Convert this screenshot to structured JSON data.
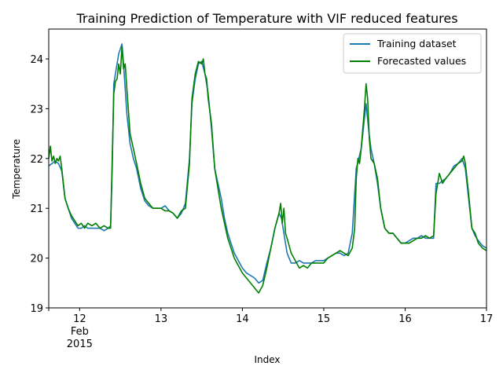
{
  "chart_data": {
    "type": "line",
    "title": "Training Prediction of Temperature with VIF reduced features",
    "xlabel": "Index",
    "ylabel": "Temperature",
    "xlim": [
      11.62,
      17.0
    ],
    "ylim": [
      19.0,
      24.6
    ],
    "x_ticks": [
      {
        "value": 12,
        "label": "12",
        "sub1": "Feb",
        "sub2": "2015"
      },
      {
        "value": 13,
        "label": "13"
      },
      {
        "value": 14,
        "label": "14"
      },
      {
        "value": 15,
        "label": "15"
      },
      {
        "value": 16,
        "label": "16"
      },
      {
        "value": 17,
        "label": "17"
      }
    ],
    "y_ticks": [
      19,
      20,
      21,
      22,
      23,
      24
    ],
    "legend_position": "top-right",
    "grid": false,
    "series": [
      {
        "name": "Training dataset",
        "color": "#1f77b4",
        "x": [
          11.62,
          11.66,
          11.7,
          11.74,
          11.78,
          11.82,
          11.86,
          11.9,
          11.94,
          11.98,
          12.02,
          12.06,
          12.1,
          12.15,
          12.2,
          12.25,
          12.3,
          12.35,
          12.38,
          12.4,
          12.42,
          12.45,
          12.48,
          12.5,
          12.52,
          12.54,
          12.56,
          12.58,
          12.62,
          12.66,
          12.7,
          12.75,
          12.8,
          12.85,
          12.9,
          12.95,
          13.0,
          13.05,
          13.1,
          13.15,
          13.2,
          13.25,
          13.3,
          13.35,
          13.38,
          13.42,
          13.46,
          13.5,
          13.54,
          13.58,
          13.62,
          13.66,
          13.7,
          13.74,
          13.78,
          13.82,
          13.86,
          13.9,
          13.95,
          14.0,
          14.05,
          14.1,
          14.15,
          14.2,
          14.25,
          14.3,
          14.35,
          14.4,
          14.45,
          14.48,
          14.5,
          14.52,
          14.55,
          14.6,
          14.65,
          14.7,
          14.75,
          14.8,
          14.85,
          14.9,
          14.95,
          15.0,
          15.05,
          15.1,
          15.15,
          15.2,
          15.25,
          15.3,
          15.35,
          15.38,
          15.4,
          15.43,
          15.46,
          15.5,
          15.52,
          15.55,
          15.58,
          15.62,
          15.66,
          15.7,
          15.75,
          15.8,
          15.85,
          15.9,
          15.95,
          16.0,
          16.05,
          16.1,
          16.15,
          16.2,
          16.25,
          16.3,
          16.35,
          16.38,
          16.42,
          16.46,
          16.5,
          16.55,
          16.6,
          16.65,
          16.7,
          16.74,
          16.78,
          16.82,
          16.86,
          16.9,
          16.95,
          17.0
        ],
        "y": [
          21.85,
          21.9,
          21.95,
          21.9,
          21.75,
          21.2,
          21.0,
          20.8,
          20.7,
          20.6,
          20.6,
          20.65,
          20.6,
          20.6,
          20.6,
          20.6,
          20.55,
          20.6,
          20.65,
          21.8,
          23.5,
          23.8,
          24.1,
          24.2,
          24.3,
          23.9,
          23.4,
          22.9,
          22.3,
          22.0,
          21.8,
          21.4,
          21.15,
          21.05,
          21.0,
          21.0,
          21.0,
          21.05,
          20.95,
          20.9,
          20.8,
          20.9,
          21.1,
          22.0,
          23.1,
          23.6,
          23.9,
          23.95,
          23.7,
          23.3,
          22.6,
          21.8,
          21.5,
          21.2,
          20.8,
          20.5,
          20.3,
          20.1,
          19.95,
          19.8,
          19.7,
          19.65,
          19.6,
          19.5,
          19.55,
          19.9,
          20.2,
          20.6,
          20.9,
          20.8,
          20.6,
          20.4,
          20.1,
          19.9,
          19.9,
          19.95,
          19.9,
          19.9,
          19.9,
          19.95,
          19.95,
          19.95,
          20.0,
          20.05,
          20.1,
          20.1,
          20.05,
          20.1,
          20.5,
          21.3,
          21.8,
          22.0,
          22.2,
          22.8,
          23.1,
          22.6,
          22.2,
          21.9,
          21.5,
          21.0,
          20.6,
          20.5,
          20.5,
          20.4,
          20.3,
          20.3,
          20.35,
          20.4,
          20.4,
          20.45,
          20.4,
          20.4,
          20.4,
          21.5,
          21.5,
          21.55,
          21.6,
          21.7,
          21.85,
          21.9,
          22.0,
          21.8,
          21.2,
          20.6,
          20.45,
          20.35,
          20.25,
          20.2
        ]
      },
      {
        "name": "Forecasted values",
        "color": "#008000",
        "x": [
          11.62,
          11.64,
          11.66,
          11.68,
          11.7,
          11.72,
          11.74,
          11.76,
          11.78,
          11.8,
          11.82,
          11.86,
          11.9,
          11.94,
          11.98,
          12.02,
          12.06,
          12.1,
          12.15,
          12.2,
          12.25,
          12.3,
          12.35,
          12.38,
          12.4,
          12.42,
          12.44,
          12.46,
          12.48,
          12.5,
          12.52,
          12.54,
          12.56,
          12.58,
          12.62,
          12.66,
          12.7,
          12.75,
          12.8,
          12.85,
          12.9,
          12.95,
          13.0,
          13.05,
          13.1,
          13.15,
          13.2,
          13.25,
          13.3,
          13.35,
          13.38,
          13.42,
          13.46,
          13.5,
          13.52,
          13.54,
          13.56,
          13.58,
          13.62,
          13.66,
          13.7,
          13.74,
          13.78,
          13.82,
          13.86,
          13.9,
          13.95,
          14.0,
          14.05,
          14.1,
          14.15,
          14.2,
          14.25,
          14.3,
          14.35,
          14.4,
          14.45,
          14.47,
          14.49,
          14.51,
          14.53,
          14.55,
          14.6,
          14.65,
          14.7,
          14.75,
          14.8,
          14.85,
          14.9,
          14.95,
          15.0,
          15.05,
          15.1,
          15.15,
          15.2,
          15.25,
          15.3,
          15.35,
          15.38,
          15.4,
          15.42,
          15.44,
          15.46,
          15.48,
          15.5,
          15.52,
          15.54,
          15.56,
          15.58,
          15.62,
          15.66,
          15.7,
          15.75,
          15.8,
          15.85,
          15.9,
          15.95,
          16.0,
          16.05,
          16.1,
          16.15,
          16.2,
          16.25,
          16.3,
          16.35,
          16.38,
          16.42,
          16.46,
          16.5,
          16.55,
          16.6,
          16.65,
          16.7,
          16.72,
          16.74,
          16.78,
          16.82,
          16.86,
          16.9,
          16.95,
          17.0
        ],
        "y": [
          22.0,
          22.25,
          21.95,
          22.05,
          21.9,
          22.0,
          21.95,
          22.05,
          21.8,
          21.5,
          21.2,
          21.0,
          20.85,
          20.75,
          20.65,
          20.7,
          20.6,
          20.7,
          20.65,
          20.7,
          20.6,
          20.65,
          20.6,
          20.6,
          22.0,
          23.3,
          23.55,
          23.6,
          23.9,
          23.7,
          24.25,
          23.8,
          23.9,
          23.4,
          22.5,
          22.2,
          21.9,
          21.5,
          21.2,
          21.1,
          21.0,
          21.0,
          21.0,
          20.95,
          20.95,
          20.9,
          20.8,
          20.95,
          21.0,
          21.9,
          23.2,
          23.7,
          23.95,
          23.9,
          24.0,
          23.7,
          23.6,
          23.2,
          22.7,
          21.8,
          21.4,
          21.0,
          20.7,
          20.4,
          20.2,
          20.0,
          19.85,
          19.7,
          19.6,
          19.5,
          19.4,
          19.3,
          19.45,
          19.8,
          20.2,
          20.6,
          20.9,
          21.1,
          20.7,
          21.0,
          20.5,
          20.4,
          20.1,
          19.95,
          19.8,
          19.85,
          19.8,
          19.9,
          19.9,
          19.9,
          19.9,
          20.0,
          20.05,
          20.1,
          20.15,
          20.1,
          20.05,
          20.2,
          20.6,
          21.6,
          22.0,
          21.9,
          22.2,
          22.6,
          23.0,
          23.5,
          23.2,
          22.4,
          22.0,
          21.9,
          21.6,
          21.0,
          20.6,
          20.5,
          20.5,
          20.4,
          20.3,
          20.3,
          20.3,
          20.35,
          20.4,
          20.4,
          20.45,
          20.4,
          20.45,
          21.3,
          21.7,
          21.5,
          21.6,
          21.7,
          21.8,
          21.9,
          21.95,
          22.05,
          21.9,
          21.3,
          20.6,
          20.5,
          20.3,
          20.2,
          20.15
        ]
      }
    ]
  }
}
